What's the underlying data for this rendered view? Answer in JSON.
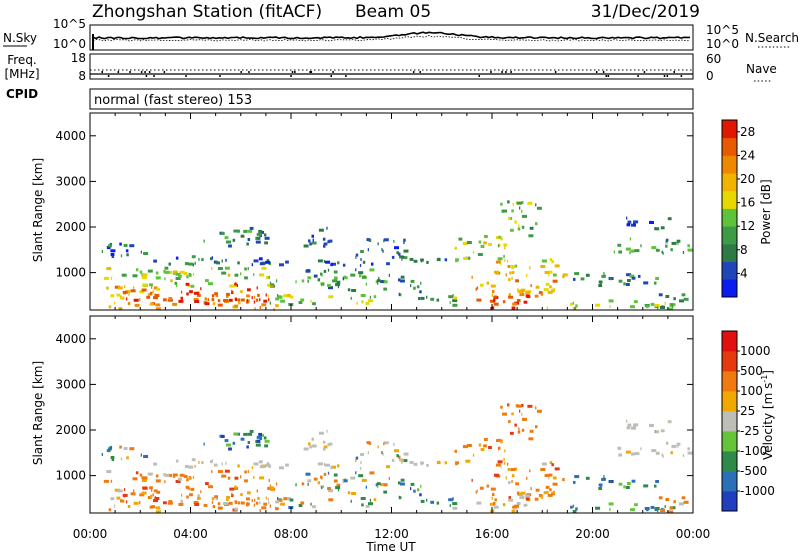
{
  "header": {
    "station": "Zhongshan Station (fitACF)",
    "beam": "Beam 05",
    "date": "31/Dec/2019",
    "mode": "normal (fast stereo) 153"
  },
  "noise_panel": {
    "left_label": "N.Sky",
    "right_label": "N.Search",
    "left_ticks": [
      "10^5",
      "10^0"
    ],
    "right_ticks": [
      "10^5",
      "10^0"
    ]
  },
  "freq_panel": {
    "left_label_1": "Freq.",
    "left_label_2": "[MHz]",
    "left_ticks": [
      "18",
      "8"
    ],
    "right_ticks": [
      "60",
      "0"
    ],
    "right_label": "Nave",
    "cpid_label": "CPID"
  },
  "chart_data": [
    {
      "type": "heatmap",
      "name": "power",
      "ylabel": "Slant Range [km]",
      "xlabel": "",
      "yticks": [
        "1000",
        "2000",
        "3000",
        "4000"
      ],
      "ylim": [
        180,
        4500
      ],
      "colorbar": {
        "label": "Power [dB]",
        "ticks": [
          "4",
          "8",
          "12",
          "16",
          "20",
          "24",
          "28"
        ],
        "colors": [
          "#0a1cf0",
          "#1f45b8",
          "#2d7a44",
          "#3d9a45",
          "#5ec23a",
          "#e8d800",
          "#f0b400",
          "#ee8800",
          "#e85a00",
          "#e01800"
        ],
        "range": [
          0,
          30
        ]
      }
    },
    {
      "type": "heatmap",
      "name": "velocity",
      "ylabel": "Slant Range [km]",
      "xlabel": "Time UT",
      "yticks": [
        "1000",
        "2000",
        "3000",
        "4000"
      ],
      "ylim": [
        180,
        4500
      ],
      "xticks": [
        "00:00",
        "04:00",
        "08:00",
        "12:00",
        "16:00",
        "20:00",
        "00:00"
      ],
      "xlim": [
        "00:00",
        "24:00"
      ],
      "colorbar": {
        "label": "Velocity [m s",
        "label_sup": "-1",
        "label_end": "]",
        "ticks": [
          "1000",
          "500",
          "100",
          "25",
          "-25",
          "-100",
          "-500",
          "-1000"
        ],
        "colors": [
          "#1f3fbf",
          "#2b6fb8",
          "#2f8a4a",
          "#66c43a",
          "#bebeb8",
          "#f0a800",
          "#ee7a10",
          "#e53a10",
          "#e01010"
        ]
      }
    }
  ]
}
